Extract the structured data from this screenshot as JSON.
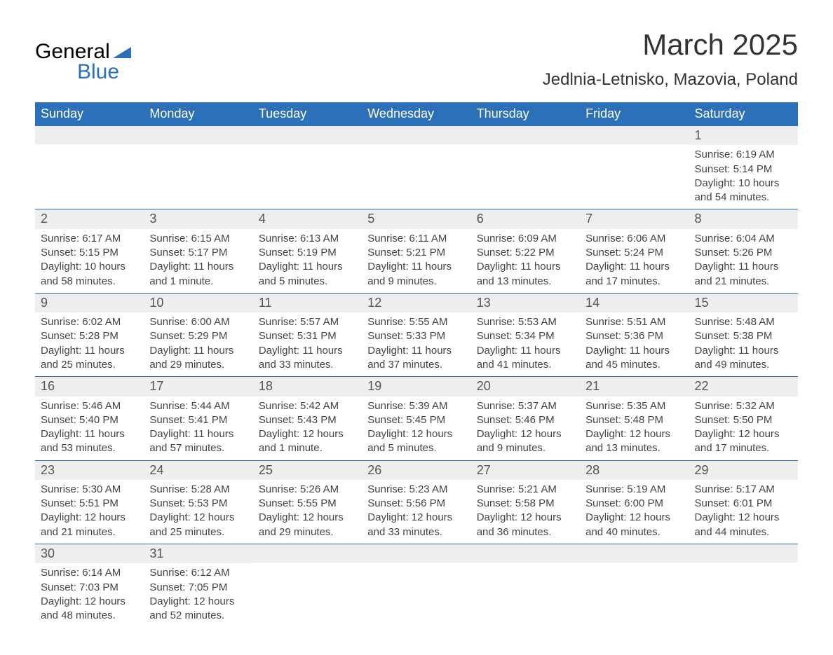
{
  "logo": {
    "text1": "General",
    "text2": "Blue"
  },
  "colors": {
    "header_bg": "#2b70b8",
    "header_text": "#ffffff",
    "daynum_bg": "#eeeeee",
    "daynum_text": "#555555",
    "content_text": "#444444",
    "border": "#2b70b8",
    "title_text": "#333333",
    "logo_blue": "#2b70b8"
  },
  "fonts": {
    "title_size_pt": 32,
    "location_size_pt": 18,
    "header_size_pt": 14,
    "daynum_size_pt": 14,
    "content_size_pt": 11
  },
  "title": "March 2025",
  "location": "Jedlnia-Letnisko, Mazovia, Poland",
  "weekdays": [
    "Sunday",
    "Monday",
    "Tuesday",
    "Wednesday",
    "Thursday",
    "Friday",
    "Saturday"
  ],
  "weeks": [
    [
      null,
      null,
      null,
      null,
      null,
      null,
      {
        "day": "1",
        "sunrise": "Sunrise: 6:19 AM",
        "sunset": "Sunset: 5:14 PM",
        "daylight1": "Daylight: 10 hours",
        "daylight2": "and 54 minutes."
      }
    ],
    [
      {
        "day": "2",
        "sunrise": "Sunrise: 6:17 AM",
        "sunset": "Sunset: 5:15 PM",
        "daylight1": "Daylight: 10 hours",
        "daylight2": "and 58 minutes."
      },
      {
        "day": "3",
        "sunrise": "Sunrise: 6:15 AM",
        "sunset": "Sunset: 5:17 PM",
        "daylight1": "Daylight: 11 hours",
        "daylight2": "and 1 minute."
      },
      {
        "day": "4",
        "sunrise": "Sunrise: 6:13 AM",
        "sunset": "Sunset: 5:19 PM",
        "daylight1": "Daylight: 11 hours",
        "daylight2": "and 5 minutes."
      },
      {
        "day": "5",
        "sunrise": "Sunrise: 6:11 AM",
        "sunset": "Sunset: 5:21 PM",
        "daylight1": "Daylight: 11 hours",
        "daylight2": "and 9 minutes."
      },
      {
        "day": "6",
        "sunrise": "Sunrise: 6:09 AM",
        "sunset": "Sunset: 5:22 PM",
        "daylight1": "Daylight: 11 hours",
        "daylight2": "and 13 minutes."
      },
      {
        "day": "7",
        "sunrise": "Sunrise: 6:06 AM",
        "sunset": "Sunset: 5:24 PM",
        "daylight1": "Daylight: 11 hours",
        "daylight2": "and 17 minutes."
      },
      {
        "day": "8",
        "sunrise": "Sunrise: 6:04 AM",
        "sunset": "Sunset: 5:26 PM",
        "daylight1": "Daylight: 11 hours",
        "daylight2": "and 21 minutes."
      }
    ],
    [
      {
        "day": "9",
        "sunrise": "Sunrise: 6:02 AM",
        "sunset": "Sunset: 5:28 PM",
        "daylight1": "Daylight: 11 hours",
        "daylight2": "and 25 minutes."
      },
      {
        "day": "10",
        "sunrise": "Sunrise: 6:00 AM",
        "sunset": "Sunset: 5:29 PM",
        "daylight1": "Daylight: 11 hours",
        "daylight2": "and 29 minutes."
      },
      {
        "day": "11",
        "sunrise": "Sunrise: 5:57 AM",
        "sunset": "Sunset: 5:31 PM",
        "daylight1": "Daylight: 11 hours",
        "daylight2": "and 33 minutes."
      },
      {
        "day": "12",
        "sunrise": "Sunrise: 5:55 AM",
        "sunset": "Sunset: 5:33 PM",
        "daylight1": "Daylight: 11 hours",
        "daylight2": "and 37 minutes."
      },
      {
        "day": "13",
        "sunrise": "Sunrise: 5:53 AM",
        "sunset": "Sunset: 5:34 PM",
        "daylight1": "Daylight: 11 hours",
        "daylight2": "and 41 minutes."
      },
      {
        "day": "14",
        "sunrise": "Sunrise: 5:51 AM",
        "sunset": "Sunset: 5:36 PM",
        "daylight1": "Daylight: 11 hours",
        "daylight2": "and 45 minutes."
      },
      {
        "day": "15",
        "sunrise": "Sunrise: 5:48 AM",
        "sunset": "Sunset: 5:38 PM",
        "daylight1": "Daylight: 11 hours",
        "daylight2": "and 49 minutes."
      }
    ],
    [
      {
        "day": "16",
        "sunrise": "Sunrise: 5:46 AM",
        "sunset": "Sunset: 5:40 PM",
        "daylight1": "Daylight: 11 hours",
        "daylight2": "and 53 minutes."
      },
      {
        "day": "17",
        "sunrise": "Sunrise: 5:44 AM",
        "sunset": "Sunset: 5:41 PM",
        "daylight1": "Daylight: 11 hours",
        "daylight2": "and 57 minutes."
      },
      {
        "day": "18",
        "sunrise": "Sunrise: 5:42 AM",
        "sunset": "Sunset: 5:43 PM",
        "daylight1": "Daylight: 12 hours",
        "daylight2": "and 1 minute."
      },
      {
        "day": "19",
        "sunrise": "Sunrise: 5:39 AM",
        "sunset": "Sunset: 5:45 PM",
        "daylight1": "Daylight: 12 hours",
        "daylight2": "and 5 minutes."
      },
      {
        "day": "20",
        "sunrise": "Sunrise: 5:37 AM",
        "sunset": "Sunset: 5:46 PM",
        "daylight1": "Daylight: 12 hours",
        "daylight2": "and 9 minutes."
      },
      {
        "day": "21",
        "sunrise": "Sunrise: 5:35 AM",
        "sunset": "Sunset: 5:48 PM",
        "daylight1": "Daylight: 12 hours",
        "daylight2": "and 13 minutes."
      },
      {
        "day": "22",
        "sunrise": "Sunrise: 5:32 AM",
        "sunset": "Sunset: 5:50 PM",
        "daylight1": "Daylight: 12 hours",
        "daylight2": "and 17 minutes."
      }
    ],
    [
      {
        "day": "23",
        "sunrise": "Sunrise: 5:30 AM",
        "sunset": "Sunset: 5:51 PM",
        "daylight1": "Daylight: 12 hours",
        "daylight2": "and 21 minutes."
      },
      {
        "day": "24",
        "sunrise": "Sunrise: 5:28 AM",
        "sunset": "Sunset: 5:53 PM",
        "daylight1": "Daylight: 12 hours",
        "daylight2": "and 25 minutes."
      },
      {
        "day": "25",
        "sunrise": "Sunrise: 5:26 AM",
        "sunset": "Sunset: 5:55 PM",
        "daylight1": "Daylight: 12 hours",
        "daylight2": "and 29 minutes."
      },
      {
        "day": "26",
        "sunrise": "Sunrise: 5:23 AM",
        "sunset": "Sunset: 5:56 PM",
        "daylight1": "Daylight: 12 hours",
        "daylight2": "and 33 minutes."
      },
      {
        "day": "27",
        "sunrise": "Sunrise: 5:21 AM",
        "sunset": "Sunset: 5:58 PM",
        "daylight1": "Daylight: 12 hours",
        "daylight2": "and 36 minutes."
      },
      {
        "day": "28",
        "sunrise": "Sunrise: 5:19 AM",
        "sunset": "Sunset: 6:00 PM",
        "daylight1": "Daylight: 12 hours",
        "daylight2": "and 40 minutes."
      },
      {
        "day": "29",
        "sunrise": "Sunrise: 5:17 AM",
        "sunset": "Sunset: 6:01 PM",
        "daylight1": "Daylight: 12 hours",
        "daylight2": "and 44 minutes."
      }
    ],
    [
      {
        "day": "30",
        "sunrise": "Sunrise: 6:14 AM",
        "sunset": "Sunset: 7:03 PM",
        "daylight1": "Daylight: 12 hours",
        "daylight2": "and 48 minutes."
      },
      {
        "day": "31",
        "sunrise": "Sunrise: 6:12 AM",
        "sunset": "Sunset: 7:05 PM",
        "daylight1": "Daylight: 12 hours",
        "daylight2": "and 52 minutes."
      },
      null,
      null,
      null,
      null,
      null
    ]
  ]
}
